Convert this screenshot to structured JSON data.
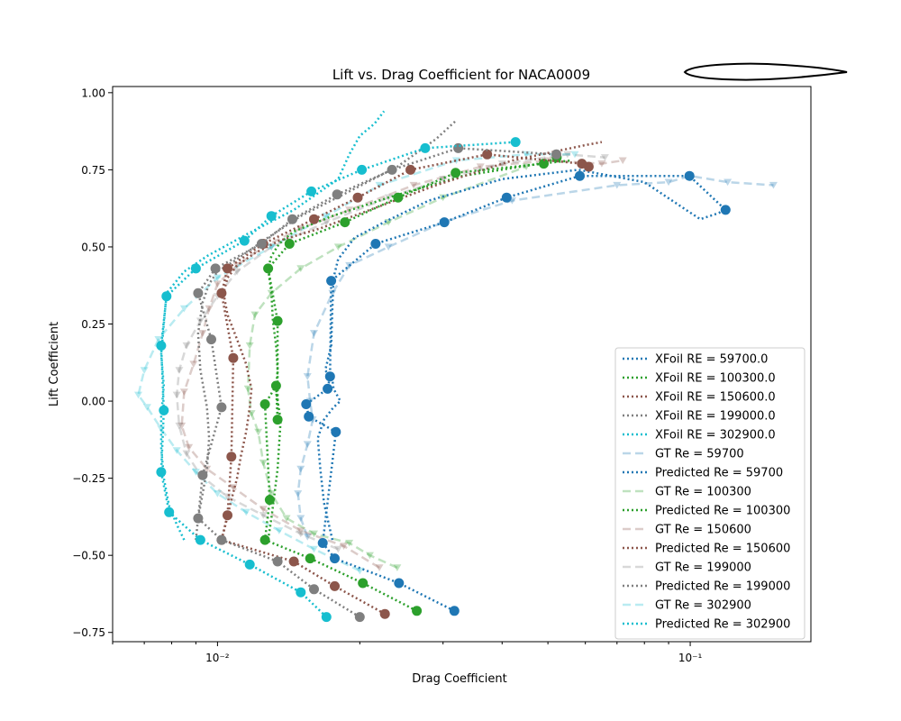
{
  "chart_data": {
    "type": "line",
    "title": "Lift vs. Drag Coefficient for NACA0009",
    "xlabel": "Drag Coefficient",
    "ylabel": "Lift Coefficient",
    "xscale": "log",
    "xlim": [
      0.006,
      0.18
    ],
    "ylim": [
      -0.78,
      1.02
    ],
    "grid": false,
    "legend_position": "lower-right",
    "x_tick_labels": [
      {
        "value": 0.01,
        "label": "10⁻²"
      },
      {
        "value": 0.1,
        "label": "10⁻¹"
      }
    ],
    "y_tick_labels": [
      {
        "value": -0.75,
        "label": "−0.75"
      },
      {
        "value": -0.5,
        "label": "−0.50"
      },
      {
        "value": -0.25,
        "label": "−0.25"
      },
      {
        "value": 0.0,
        "label": "0.00"
      },
      {
        "value": 0.25,
        "label": "0.25"
      },
      {
        "value": 0.5,
        "label": "0.50"
      },
      {
        "value": 0.75,
        "label": "0.75"
      },
      {
        "value": 1.0,
        "label": "1.00"
      }
    ],
    "series": [
      {
        "name": "XFoil RE = 59700.0",
        "kind": "xfoil",
        "color": "#1f77b4",
        "x": [
          0.0175,
          0.0172,
          0.0168,
          0.0165,
          0.0163,
          0.0168,
          0.0176,
          0.0182,
          0.0176,
          0.0175,
          0.0169,
          0.0174,
          0.0175,
          0.0176,
          0.018,
          0.0195,
          0.0225,
          0.028,
          0.04,
          0.058,
          0.08,
          0.098,
          0.105,
          0.115,
          0.12
        ],
        "y": [
          -0.45,
          -0.4,
          -0.33,
          -0.22,
          -0.12,
          -0.06,
          -0.02,
          0.0,
          0.04,
          0.07,
          0.1,
          0.18,
          0.3,
          0.4,
          0.46,
          0.53,
          0.58,
          0.65,
          0.72,
          0.75,
          0.71,
          0.62,
          0.59,
          0.61,
          0.63
        ]
      },
      {
        "name": "XFoil RE = 100300.0",
        "kind": "xfoil",
        "color": "#2ca02c",
        "x": [
          0.0128,
          0.013,
          0.0132,
          0.0134,
          0.0135,
          0.0136,
          0.0134,
          0.0133,
          0.0134,
          0.0133,
          0.0131,
          0.013,
          0.0128,
          0.013,
          0.0135,
          0.0145,
          0.0175,
          0.023,
          0.033,
          0.048,
          0.056
        ],
        "y": [
          -0.45,
          -0.38,
          -0.3,
          -0.22,
          -0.14,
          -0.06,
          0.0,
          0.04,
          0.1,
          0.18,
          0.26,
          0.35,
          0.43,
          0.47,
          0.51,
          0.55,
          0.6,
          0.66,
          0.73,
          0.77,
          0.78
        ]
      },
      {
        "name": "XFoil RE = 150600.0",
        "kind": "xfoil",
        "color": "#8c564b",
        "x": [
          0.0102,
          0.0104,
          0.0107,
          0.011,
          0.0112,
          0.0115,
          0.0117,
          0.0118,
          0.0115,
          0.011,
          0.0105,
          0.0103,
          0.0105,
          0.011,
          0.012,
          0.0135,
          0.0165,
          0.021,
          0.029,
          0.042,
          0.06,
          0.065
        ],
        "y": [
          -0.45,
          -0.4,
          -0.32,
          -0.25,
          -0.18,
          -0.1,
          -0.02,
          0.04,
          0.12,
          0.2,
          0.28,
          0.35,
          0.4,
          0.44,
          0.48,
          0.52,
          0.56,
          0.62,
          0.7,
          0.78,
          0.83,
          0.84
        ]
      },
      {
        "name": "XFoil RE = 199000.0",
        "kind": "xfoil",
        "color": "#7f7f7f",
        "x": [
          0.009,
          0.0091,
          0.0093,
          0.0095,
          0.0096,
          0.0095,
          0.0092,
          0.0091,
          0.0093,
          0.0096,
          0.01,
          0.011,
          0.0125,
          0.015,
          0.019,
          0.024,
          0.029,
          0.032
        ],
        "y": [
          -0.45,
          -0.38,
          -0.3,
          -0.22,
          -0.12,
          -0.02,
          0.1,
          0.22,
          0.32,
          0.38,
          0.42,
          0.46,
          0.52,
          0.6,
          0.68,
          0.76,
          0.85,
          0.91
        ]
      },
      {
        "name": "XFoil RE = 302900.0",
        "kind": "xfoil",
        "color": "#17becf",
        "x": [
          0.0085,
          0.0082,
          0.0079,
          0.0077,
          0.0076,
          0.0076,
          0.0077,
          0.0076,
          0.0077,
          0.0078,
          0.0085,
          0.0095,
          0.0115,
          0.0145,
          0.018,
          0.019,
          0.02,
          0.0215,
          0.0225
        ],
        "y": [
          -0.45,
          -0.4,
          -0.34,
          -0.25,
          -0.15,
          -0.05,
          0.05,
          0.15,
          0.25,
          0.35,
          0.42,
          0.47,
          0.54,
          0.62,
          0.72,
          0.8,
          0.86,
          0.9,
          0.94
        ]
      },
      {
        "name": "GT Re = 59700",
        "kind": "gt",
        "color": "#1f77b4",
        "x": [
          0.0155,
          0.015,
          0.0148,
          0.015,
          0.0155,
          0.0159,
          0.0157,
          0.0155,
          0.016,
          0.0175,
          0.019,
          0.023,
          0.03,
          0.042,
          0.07,
          0.09,
          0.1,
          0.12,
          0.15
        ],
        "y": [
          -0.44,
          -0.38,
          -0.3,
          -0.22,
          -0.14,
          -0.06,
          0.0,
          0.08,
          0.22,
          0.35,
          0.44,
          0.5,
          0.58,
          0.65,
          0.7,
          0.71,
          0.73,
          0.71,
          0.7
        ]
      },
      {
        "name": "Predicted Re = 59700",
        "kind": "pred",
        "color": "#1f77b4",
        "x": [
          0.0317,
          0.0242,
          0.0177,
          0.0167,
          0.0178,
          0.0156,
          0.0154,
          0.0171,
          0.0173,
          0.0174,
          0.0216,
          0.0302,
          0.0409,
          0.0584,
          0.0996,
          0.1188
        ],
        "y": [
          -0.68,
          -0.59,
          -0.51,
          -0.46,
          -0.1,
          -0.05,
          -0.01,
          0.04,
          0.08,
          0.39,
          0.51,
          0.58,
          0.66,
          0.73,
          0.73,
          0.62
        ]
      },
      {
        "name": "GT Re = 100300",
        "kind": "gt",
        "color": "#2ca02c",
        "x": [
          0.024,
          0.021,
          0.019,
          0.016,
          0.014,
          0.013,
          0.0125,
          0.0122,
          0.0118,
          0.0116,
          0.0117,
          0.012,
          0.013,
          0.015,
          0.018,
          0.023,
          0.03,
          0.045
        ],
        "y": [
          -0.54,
          -0.5,
          -0.46,
          -0.43,
          -0.38,
          -0.3,
          -0.2,
          -0.1,
          -0.04,
          0.04,
          0.18,
          0.28,
          0.35,
          0.43,
          0.5,
          0.58,
          0.66,
          0.76
        ]
      },
      {
        "name": "Predicted Re = 100300",
        "kind": "pred",
        "color": "#2ca02c",
        "x": [
          0.0264,
          0.0203,
          0.0157,
          0.0126,
          0.0129,
          0.0126,
          0.0133,
          0.0134,
          0.0134,
          0.0128,
          0.0142,
          0.0186,
          0.0241,
          0.0319,
          0.049,
          0.0522
        ],
        "y": [
          -0.68,
          -0.59,
          -0.51,
          -0.45,
          -0.32,
          -0.01,
          0.05,
          -0.06,
          0.26,
          0.43,
          0.51,
          0.58,
          0.66,
          0.74,
          0.77,
          0.79
        ]
      },
      {
        "name": "GT Re = 150600",
        "kind": "gt",
        "color": "#8c564b",
        "x": [
          0.022,
          0.0185,
          0.015,
          0.0125,
          0.0108,
          0.0095,
          0.0087,
          0.0084,
          0.0085,
          0.0089,
          0.0093,
          0.0096,
          0.01,
          0.011,
          0.0125,
          0.015,
          0.019,
          0.026,
          0.036,
          0.05,
          0.065,
          0.072
        ],
        "y": [
          -0.54,
          -0.47,
          -0.42,
          -0.35,
          -0.28,
          -0.22,
          -0.15,
          -0.08,
          0.03,
          0.12,
          0.22,
          0.3,
          0.38,
          0.44,
          0.5,
          0.56,
          0.62,
          0.7,
          0.76,
          0.78,
          0.77,
          0.78
        ]
      },
      {
        "name": "Predicted Re = 150600",
        "kind": "pred",
        "color": "#8c564b",
        "x": [
          0.0226,
          0.0177,
          0.0145,
          0.0102,
          0.0105,
          0.0107,
          0.0108,
          0.0102,
          0.0105,
          0.0125,
          0.016,
          0.0198,
          0.0256,
          0.0372,
          0.059,
          0.061
        ],
        "y": [
          -0.69,
          -0.6,
          -0.52,
          -0.45,
          -0.37,
          -0.18,
          0.14,
          0.35,
          0.43,
          0.51,
          0.59,
          0.66,
          0.75,
          0.8,
          0.77,
          0.76
        ]
      },
      {
        "name": "GT Re = 199000",
        "kind": "gt",
        "color": "#7f7f7f",
        "x": [
          0.018,
          0.015,
          0.0125,
          0.0105,
          0.0092,
          0.0086,
          0.0083,
          0.0082,
          0.0083,
          0.0086,
          0.0092,
          0.01,
          0.011,
          0.013,
          0.017,
          0.023,
          0.03,
          0.04,
          0.055,
          0.066
        ],
        "y": [
          -0.48,
          -0.43,
          -0.37,
          -0.31,
          -0.24,
          -0.17,
          -0.08,
          0.02,
          0.1,
          0.18,
          0.26,
          0.34,
          0.42,
          0.5,
          0.58,
          0.66,
          0.72,
          0.77,
          0.8,
          0.79
        ]
      },
      {
        "name": "Predicted Re = 199000",
        "kind": "pred",
        "color": "#7f7f7f",
        "x": [
          0.02,
          0.016,
          0.0134,
          0.0102,
          0.0091,
          0.0093,
          0.0102,
          0.0097,
          0.0091,
          0.0099,
          0.0124,
          0.0144,
          0.0179,
          0.0234,
          0.0323,
          0.0521
        ],
        "y": [
          -0.7,
          -0.61,
          -0.52,
          -0.45,
          -0.38,
          -0.24,
          -0.02,
          0.2,
          0.35,
          0.43,
          0.51,
          0.59,
          0.67,
          0.75,
          0.82,
          0.8
        ]
      },
      {
        "name": "GT Re = 302900",
        "kind": "gt",
        "color": "#17becf",
        "x": [
          0.02,
          0.016,
          0.0135,
          0.0115,
          0.01,
          0.009,
          0.0082,
          0.0076,
          0.0071,
          0.0068,
          0.007,
          0.0075,
          0.0085,
          0.01,
          0.013,
          0.017,
          0.022,
          0.032,
          0.045,
          0.057
        ],
        "y": [
          -0.55,
          -0.48,
          -0.42,
          -0.36,
          -0.3,
          -0.23,
          -0.16,
          -0.09,
          -0.02,
          0.02,
          0.1,
          0.2,
          0.3,
          0.4,
          0.5,
          0.6,
          0.7,
          0.78,
          0.8,
          0.8
        ]
      },
      {
        "name": "Predicted Re = 302900",
        "kind": "pred",
        "color": "#17becf",
        "x": [
          0.017,
          0.015,
          0.0117,
          0.0092,
          0.0079,
          0.0076,
          0.0077,
          0.0076,
          0.0078,
          0.009,
          0.0114,
          0.013,
          0.0158,
          0.0202,
          0.0275,
          0.0427
        ],
        "y": [
          -0.7,
          -0.62,
          -0.53,
          -0.45,
          -0.36,
          -0.23,
          -0.03,
          0.18,
          0.34,
          0.43,
          0.52,
          0.6,
          0.68,
          0.75,
          0.82,
          0.84
        ]
      }
    ],
    "legend": [
      "XFoil RE = 59700.0",
      "XFoil RE = 100300.0",
      "XFoil RE = 150600.0",
      "XFoil RE = 199000.0",
      "XFoil RE = 302900.0",
      "GT Re = 59700",
      "Predicted Re = 59700",
      "GT Re = 100300",
      "Predicted Re = 100300",
      "GT Re = 150600",
      "Predicted Re = 150600",
      "GT Re = 199000",
      "Predicted Re = 199000",
      "GT Re = 302900",
      "Predicted Re = 302900"
    ]
  }
}
